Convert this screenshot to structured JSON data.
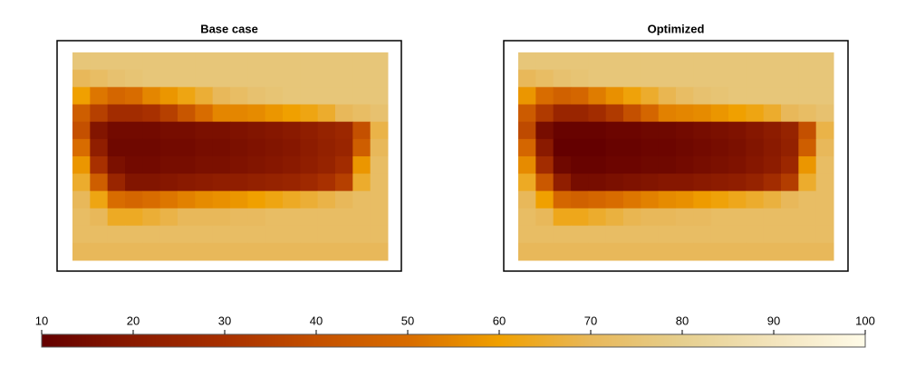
{
  "chart_data": [
    {
      "type": "heatmap",
      "title": "Base case",
      "values": [
        [
          76,
          76,
          76,
          76,
          76,
          76,
          76,
          76,
          76,
          76,
          76,
          76,
          76,
          76,
          76,
          76,
          76,
          76
        ],
        [
          70,
          72,
          74,
          75,
          76,
          76,
          76,
          76,
          76,
          76,
          76,
          76,
          76,
          76,
          76,
          76,
          76,
          76
        ],
        [
          60,
          52,
          48,
          50,
          55,
          58,
          62,
          66,
          70,
          72,
          74,
          75,
          76,
          76,
          76,
          76,
          76,
          76
        ],
        [
          45,
          35,
          28,
          28,
          30,
          35,
          42,
          50,
          55,
          55,
          56,
          58,
          60,
          62,
          65,
          70,
          72,
          74
        ],
        [
          40,
          18,
          14,
          14,
          14,
          15,
          15,
          16,
          16,
          17,
          18,
          19,
          20,
          22,
          24,
          26,
          40,
          68
        ],
        [
          50,
          22,
          13,
          13,
          13,
          14,
          14,
          15,
          15,
          16,
          17,
          18,
          19,
          21,
          23,
          25,
          45,
          70
        ],
        [
          58,
          30,
          16,
          14,
          14,
          15,
          15,
          16,
          16,
          17,
          18,
          19,
          20,
          22,
          24,
          28,
          58,
          72
        ],
        [
          65,
          45,
          25,
          18,
          18,
          19,
          20,
          21,
          22,
          22,
          23,
          24,
          25,
          27,
          30,
          35,
          65,
          72
        ],
        [
          70,
          62,
          50,
          48,
          50,
          52,
          54,
          56,
          57,
          58,
          60,
          62,
          64,
          66,
          68,
          70,
          72,
          72
        ],
        [
          72,
          70,
          64,
          64,
          66,
          68,
          70,
          70,
          70,
          71,
          71,
          72,
          72,
          72,
          72,
          72,
          72,
          72
        ],
        [
          72,
          72,
          72,
          72,
          72,
          72,
          72,
          72,
          72,
          72,
          72,
          72,
          72,
          72,
          72,
          72,
          72,
          72
        ],
        [
          70,
          70,
          70,
          70,
          70,
          70,
          70,
          70,
          70,
          70,
          70,
          70,
          70,
          70,
          70,
          70,
          70,
          70
        ]
      ]
    },
    {
      "type": "heatmap",
      "title": "Optimized",
      "values": [
        [
          76,
          76,
          76,
          76,
          76,
          76,
          76,
          76,
          76,
          76,
          76,
          76,
          76,
          76,
          76,
          76,
          76,
          76
        ],
        [
          70,
          72,
          74,
          75,
          76,
          76,
          76,
          76,
          76,
          76,
          76,
          76,
          76,
          76,
          76,
          76,
          76,
          76
        ],
        [
          58,
          50,
          46,
          48,
          53,
          57,
          61,
          65,
          69,
          72,
          74,
          75,
          76,
          76,
          76,
          76,
          76,
          76
        ],
        [
          44,
          33,
          25,
          25,
          28,
          33,
          40,
          48,
          54,
          55,
          56,
          58,
          60,
          62,
          65,
          70,
          72,
          74
        ],
        [
          38,
          15,
          11,
          11,
          11,
          12,
          12,
          13,
          13,
          14,
          15,
          16,
          17,
          19,
          21,
          24,
          40,
          68
        ],
        [
          48,
          20,
          10,
          10,
          10,
          11,
          11,
          12,
          12,
          13,
          14,
          15,
          16,
          18,
          20,
          23,
          45,
          70
        ],
        [
          56,
          28,
          13,
          11,
          11,
          12,
          12,
          13,
          13,
          14,
          15,
          16,
          17,
          19,
          21,
          26,
          58,
          72
        ],
        [
          64,
          43,
          22,
          15,
          15,
          16,
          17,
          18,
          19,
          19,
          20,
          21,
          22,
          24,
          28,
          34,
          65,
          72
        ],
        [
          70,
          60,
          48,
          46,
          48,
          50,
          52,
          54,
          56,
          57,
          59,
          61,
          63,
          65,
          67,
          70,
          72,
          72
        ],
        [
          72,
          70,
          63,
          63,
          65,
          67,
          69,
          70,
          70,
          71,
          71,
          72,
          72,
          72,
          72,
          72,
          72,
          72
        ],
        [
          72,
          72,
          72,
          72,
          72,
          72,
          72,
          72,
          72,
          72,
          72,
          72,
          72,
          72,
          72,
          72,
          72,
          72
        ],
        [
          70,
          70,
          70,
          70,
          70,
          70,
          70,
          70,
          70,
          70,
          70,
          70,
          70,
          70,
          70,
          70,
          70,
          70
        ]
      ]
    },
    {
      "type": "colorbar",
      "xlim": [
        10,
        100
      ],
      "xticks": [
        10,
        20,
        30,
        40,
        50,
        60,
        70,
        80,
        90,
        100
      ],
      "colormap": [
        "#640000",
        "#8a1a00",
        "#a83000",
        "#c45000",
        "#d86c00",
        "#f0a000",
        "#e8b85a",
        "#e6cf8e",
        "#f3e4bc",
        "#fffbe8"
      ]
    }
  ]
}
